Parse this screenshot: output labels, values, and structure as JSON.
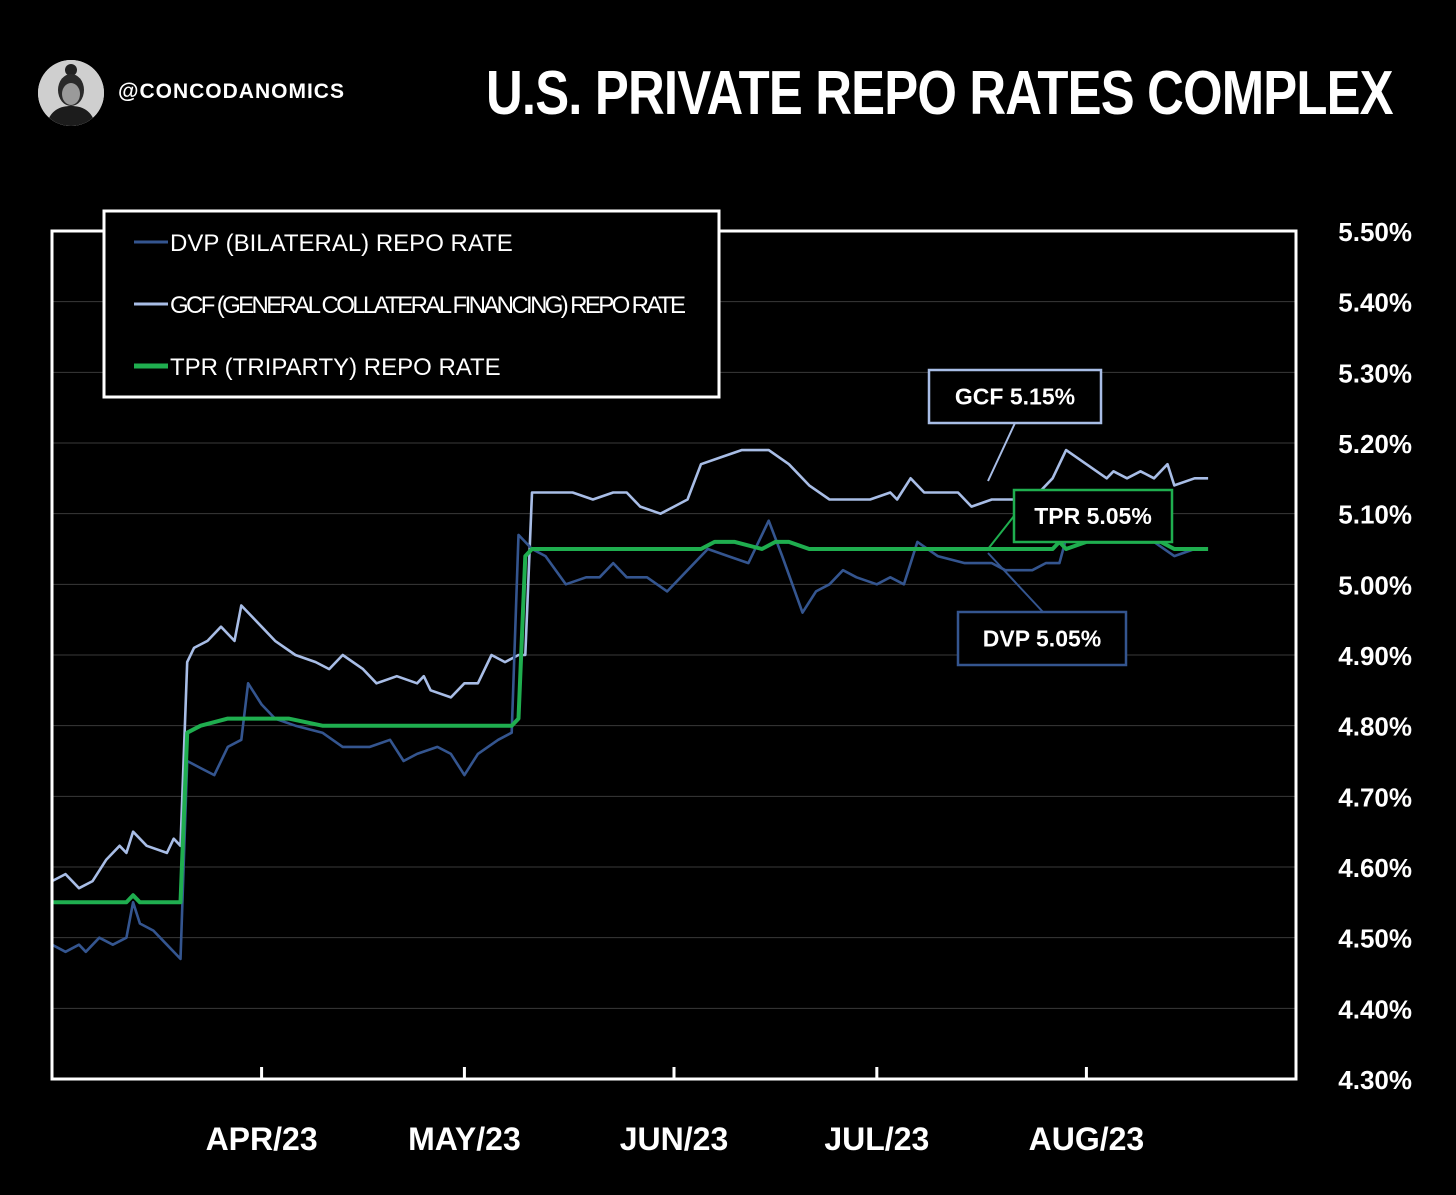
{
  "header": {
    "handle": "@CONCODANOMICS",
    "title": "U.S. PRIVATE REPO RATES COMPLEX"
  },
  "colors": {
    "dvp": "#34558f",
    "gcf": "#a8bde6",
    "tpr": "#1fae4f",
    "grid": "#3a3a3a",
    "frame": "#ffffff"
  },
  "chart_data": {
    "type": "line",
    "title": "U.S. PRIVATE REPO RATES COMPLEX",
    "yaxis_position": "right",
    "ylim": [
      4.3,
      5.5
    ],
    "y_ticks": [
      4.3,
      4.4,
      4.5,
      4.6,
      4.7,
      4.8,
      4.9,
      5.0,
      5.1,
      5.2,
      5.3,
      5.4,
      5.5
    ],
    "y_tick_labels": [
      "4.30%",
      "4.40%",
      "4.50%",
      "4.60%",
      "4.70%",
      "4.80%",
      "4.90%",
      "5.00%",
      "5.10%",
      "5.20%",
      "5.30%",
      "5.40%",
      "5.50%"
    ],
    "xlim": [
      "2023-03-01",
      "2023-09-01"
    ],
    "x_ticks": [
      "2023-04-01",
      "2023-05-01",
      "2023-06-01",
      "2023-07-01",
      "2023-08-01"
    ],
    "x_tick_labels": [
      "APR/23",
      "MAY/23",
      "JUN/23",
      "JUL/23",
      "AUG/23"
    ],
    "grid": true,
    "legend": {
      "placement": "top-left",
      "entries": [
        {
          "series": "dvp",
          "label": "DVP (BILATERAL)  REPO RATE"
        },
        {
          "series": "gcf",
          "label": "GCF (GENERAL COLLATERAL  FINANCING) REPO RATE"
        },
        {
          "series": "tpr",
          "label": "TPR (TRIPARTY) REPO RATE"
        }
      ]
    },
    "callouts": [
      {
        "series": "gcf",
        "text": "GCF 5.15%"
      },
      {
        "series": "tpr",
        "text": "TPR 5.05%"
      },
      {
        "series": "dvp",
        "text": "DVP 5.05%"
      }
    ],
    "series": [
      {
        "key": "dvp",
        "name": "DVP (BILATERAL)  REPO RATE",
        "points": [
          [
            "2023-03-01",
            4.49
          ],
          [
            "2023-03-03",
            4.48
          ],
          [
            "2023-03-05",
            4.49
          ],
          [
            "2023-03-06",
            4.48
          ],
          [
            "2023-03-08",
            4.5
          ],
          [
            "2023-03-10",
            4.49
          ],
          [
            "2023-03-12",
            4.5
          ],
          [
            "2023-03-13",
            4.55
          ],
          [
            "2023-03-14",
            4.52
          ],
          [
            "2023-03-16",
            4.51
          ],
          [
            "2023-03-18",
            4.49
          ],
          [
            "2023-03-20",
            4.47
          ],
          [
            "2023-03-21",
            4.75
          ],
          [
            "2023-03-23",
            4.74
          ],
          [
            "2023-03-25",
            4.73
          ],
          [
            "2023-03-27",
            4.77
          ],
          [
            "2023-03-29",
            4.78
          ],
          [
            "2023-03-30",
            4.86
          ],
          [
            "2023-04-01",
            4.83
          ],
          [
            "2023-04-03",
            4.81
          ],
          [
            "2023-04-06",
            4.8
          ],
          [
            "2023-04-10",
            4.79
          ],
          [
            "2023-04-13",
            4.77
          ],
          [
            "2023-04-17",
            4.77
          ],
          [
            "2023-04-20",
            4.78
          ],
          [
            "2023-04-22",
            4.75
          ],
          [
            "2023-04-24",
            4.76
          ],
          [
            "2023-04-27",
            4.77
          ],
          [
            "2023-04-29",
            4.76
          ],
          [
            "2023-05-01",
            4.73
          ],
          [
            "2023-05-03",
            4.76
          ],
          [
            "2023-05-06",
            4.78
          ],
          [
            "2023-05-08",
            4.79
          ],
          [
            "2023-05-09",
            5.07
          ],
          [
            "2023-05-11",
            5.05
          ],
          [
            "2023-05-13",
            5.04
          ],
          [
            "2023-05-16",
            5.0
          ],
          [
            "2023-05-19",
            5.01
          ],
          [
            "2023-05-21",
            5.01
          ],
          [
            "2023-05-23",
            5.03
          ],
          [
            "2023-05-25",
            5.01
          ],
          [
            "2023-05-28",
            5.01
          ],
          [
            "2023-05-31",
            4.99
          ],
          [
            "2023-06-03",
            5.02
          ],
          [
            "2023-06-06",
            5.05
          ],
          [
            "2023-06-09",
            5.04
          ],
          [
            "2023-06-12",
            5.03
          ],
          [
            "2023-06-15",
            5.09
          ],
          [
            "2023-06-17",
            5.04
          ],
          [
            "2023-06-20",
            4.96
          ],
          [
            "2023-06-22",
            4.99
          ],
          [
            "2023-06-24",
            5.0
          ],
          [
            "2023-06-26",
            5.02
          ],
          [
            "2023-06-28",
            5.01
          ],
          [
            "2023-07-01",
            5.0
          ],
          [
            "2023-07-03",
            5.01
          ],
          [
            "2023-07-05",
            5.0
          ],
          [
            "2023-07-07",
            5.06
          ],
          [
            "2023-07-10",
            5.04
          ],
          [
            "2023-07-14",
            5.03
          ],
          [
            "2023-07-18",
            5.03
          ],
          [
            "2023-07-20",
            5.02
          ],
          [
            "2023-07-24",
            5.02
          ],
          [
            "2023-07-26",
            5.03
          ],
          [
            "2023-07-28",
            5.03
          ],
          [
            "2023-07-30",
            5.1
          ],
          [
            "2023-08-02",
            5.08
          ],
          [
            "2023-08-05",
            5.07
          ],
          [
            "2023-08-08",
            5.07
          ],
          [
            "2023-08-11",
            5.06
          ],
          [
            "2023-08-14",
            5.04
          ],
          [
            "2023-08-17",
            5.05
          ],
          [
            "2023-08-18",
            5.05
          ]
        ]
      },
      {
        "key": "gcf",
        "name": "GCF (GENERAL COLLATERAL  FINANCING) REPO RATE",
        "points": [
          [
            "2023-03-01",
            4.58
          ],
          [
            "2023-03-03",
            4.59
          ],
          [
            "2023-03-05",
            4.57
          ],
          [
            "2023-03-07",
            4.58
          ],
          [
            "2023-03-09",
            4.61
          ],
          [
            "2023-03-11",
            4.63
          ],
          [
            "2023-03-12",
            4.62
          ],
          [
            "2023-03-13",
            4.65
          ],
          [
            "2023-03-15",
            4.63
          ],
          [
            "2023-03-18",
            4.62
          ],
          [
            "2023-03-19",
            4.64
          ],
          [
            "2023-03-20",
            4.63
          ],
          [
            "2023-03-21",
            4.89
          ],
          [
            "2023-03-22",
            4.91
          ],
          [
            "2023-03-24",
            4.92
          ],
          [
            "2023-03-26",
            4.94
          ],
          [
            "2023-03-28",
            4.92
          ],
          [
            "2023-03-29",
            4.97
          ],
          [
            "2023-04-01",
            4.94
          ],
          [
            "2023-04-03",
            4.92
          ],
          [
            "2023-04-06",
            4.9
          ],
          [
            "2023-04-09",
            4.89
          ],
          [
            "2023-04-11",
            4.88
          ],
          [
            "2023-04-13",
            4.9
          ],
          [
            "2023-04-16",
            4.88
          ],
          [
            "2023-04-18",
            4.86
          ],
          [
            "2023-04-21",
            4.87
          ],
          [
            "2023-04-24",
            4.86
          ],
          [
            "2023-04-25",
            4.87
          ],
          [
            "2023-04-26",
            4.85
          ],
          [
            "2023-04-29",
            4.84
          ],
          [
            "2023-05-01",
            4.86
          ],
          [
            "2023-05-03",
            4.86
          ],
          [
            "2023-05-05",
            4.9
          ],
          [
            "2023-05-07",
            4.89
          ],
          [
            "2023-05-09",
            4.9
          ],
          [
            "2023-05-10",
            4.9
          ],
          [
            "2023-05-11",
            5.13
          ],
          [
            "2023-05-14",
            5.13
          ],
          [
            "2023-05-17",
            5.13
          ],
          [
            "2023-05-20",
            5.12
          ],
          [
            "2023-05-23",
            5.13
          ],
          [
            "2023-05-25",
            5.13
          ],
          [
            "2023-05-27",
            5.11
          ],
          [
            "2023-05-30",
            5.1
          ],
          [
            "2023-06-01",
            5.11
          ],
          [
            "2023-06-03",
            5.12
          ],
          [
            "2023-06-05",
            5.17
          ],
          [
            "2023-06-08",
            5.18
          ],
          [
            "2023-06-11",
            5.19
          ],
          [
            "2023-06-15",
            5.19
          ],
          [
            "2023-06-18",
            5.17
          ],
          [
            "2023-06-21",
            5.14
          ],
          [
            "2023-06-24",
            5.12
          ],
          [
            "2023-06-27",
            5.12
          ],
          [
            "2023-06-30",
            5.12
          ],
          [
            "2023-07-03",
            5.13
          ],
          [
            "2023-07-04",
            5.12
          ],
          [
            "2023-07-06",
            5.15
          ],
          [
            "2023-07-08",
            5.13
          ],
          [
            "2023-07-10",
            5.13
          ],
          [
            "2023-07-13",
            5.13
          ],
          [
            "2023-07-15",
            5.11
          ],
          [
            "2023-07-18",
            5.12
          ],
          [
            "2023-07-21",
            5.12
          ],
          [
            "2023-07-24",
            5.12
          ],
          [
            "2023-07-27",
            5.15
          ],
          [
            "2023-07-29",
            5.19
          ],
          [
            "2023-08-01",
            5.17
          ],
          [
            "2023-08-04",
            5.15
          ],
          [
            "2023-08-05",
            5.16
          ],
          [
            "2023-08-07",
            5.15
          ],
          [
            "2023-08-09",
            5.16
          ],
          [
            "2023-08-11",
            5.15
          ],
          [
            "2023-08-13",
            5.17
          ],
          [
            "2023-08-14",
            5.14
          ],
          [
            "2023-08-17",
            5.15
          ],
          [
            "2023-08-19",
            5.15
          ]
        ]
      },
      {
        "key": "tpr",
        "name": "TPR (TRIPARTY) REPO RATE",
        "points": [
          [
            "2023-03-01",
            4.55
          ],
          [
            "2023-03-12",
            4.55
          ],
          [
            "2023-03-13",
            4.56
          ],
          [
            "2023-03-14",
            4.55
          ],
          [
            "2023-03-19",
            4.55
          ],
          [
            "2023-03-20",
            4.55
          ],
          [
            "2023-03-21",
            4.79
          ],
          [
            "2023-03-23",
            4.8
          ],
          [
            "2023-03-27",
            4.81
          ],
          [
            "2023-04-05",
            4.81
          ],
          [
            "2023-04-10",
            4.8
          ],
          [
            "2023-04-20",
            4.8
          ],
          [
            "2023-05-07",
            4.8
          ],
          [
            "2023-05-08",
            4.8
          ],
          [
            "2023-05-09",
            4.81
          ],
          [
            "2023-05-10",
            5.04
          ],
          [
            "2023-05-11",
            5.05
          ],
          [
            "2023-06-05",
            5.05
          ],
          [
            "2023-06-07",
            5.06
          ],
          [
            "2023-06-10",
            5.06
          ],
          [
            "2023-06-14",
            5.05
          ],
          [
            "2023-06-16",
            5.06
          ],
          [
            "2023-06-18",
            5.06
          ],
          [
            "2023-06-21",
            5.05
          ],
          [
            "2023-07-27",
            5.05
          ],
          [
            "2023-07-28",
            5.06
          ],
          [
            "2023-07-29",
            5.05
          ],
          [
            "2023-08-01",
            5.06
          ],
          [
            "2023-08-12",
            5.06
          ],
          [
            "2023-08-14",
            5.05
          ],
          [
            "2023-08-19",
            5.05
          ]
        ]
      }
    ]
  }
}
